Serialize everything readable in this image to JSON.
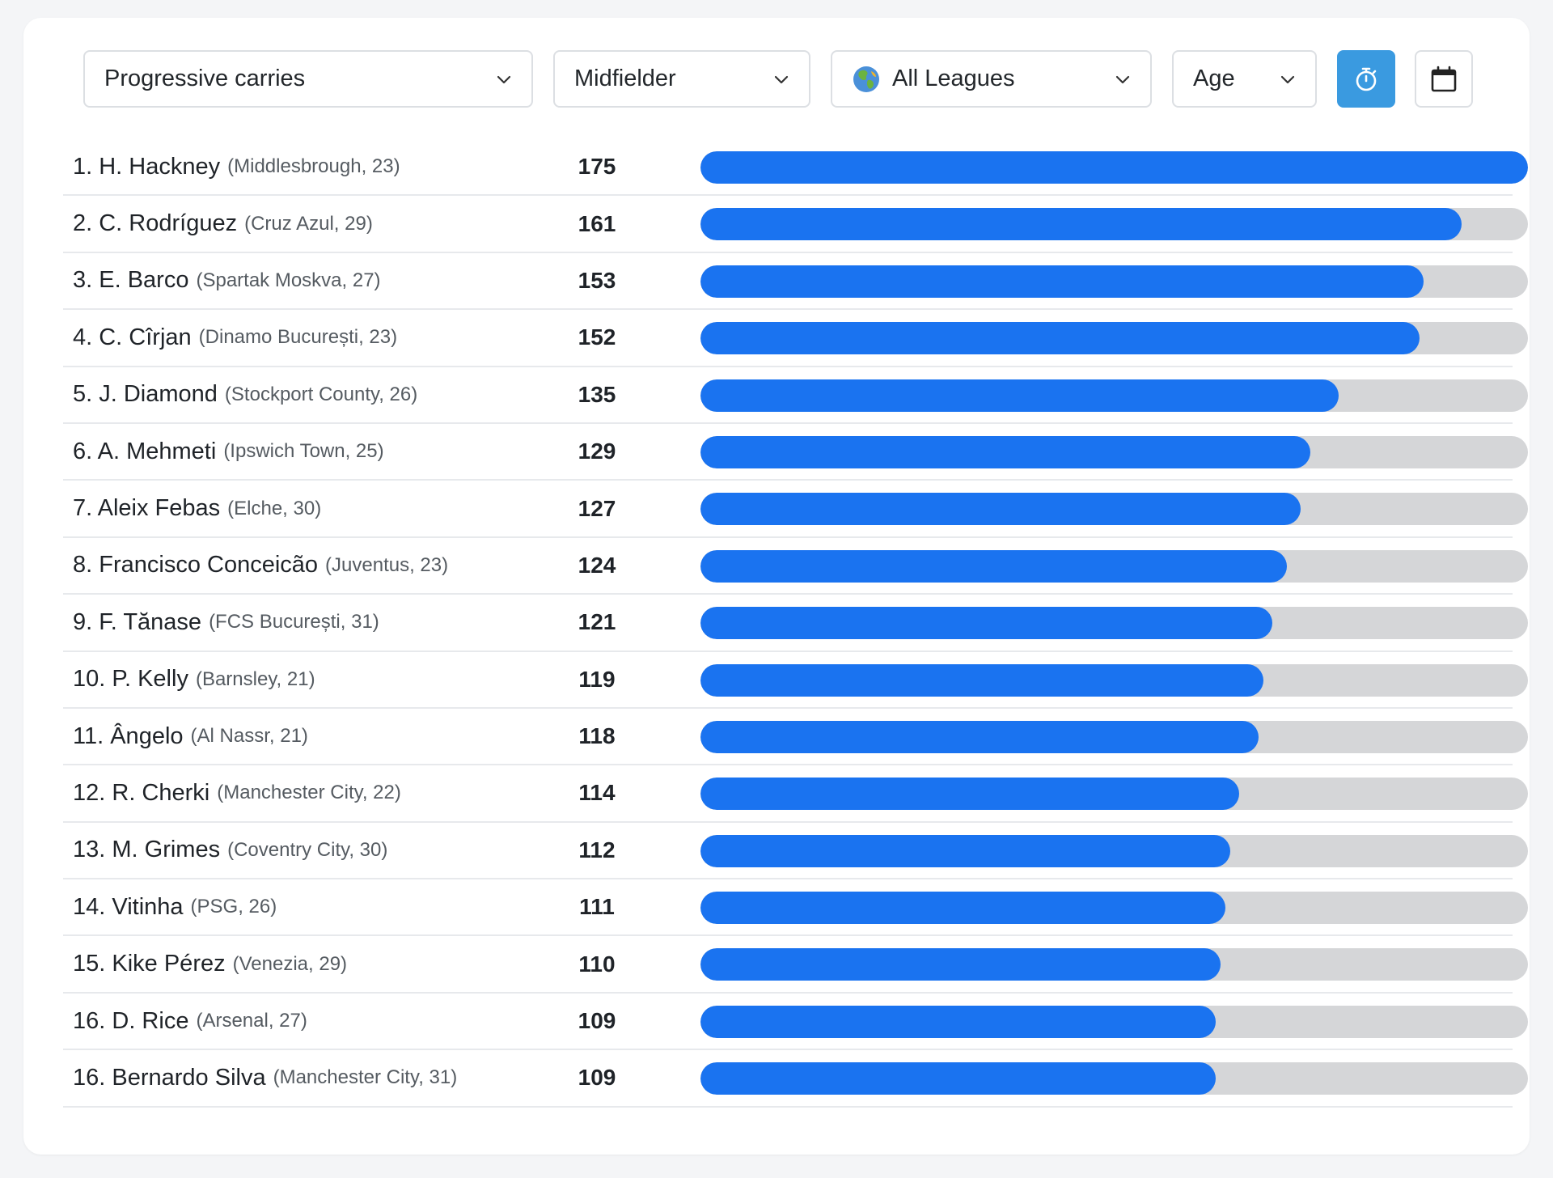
{
  "filters": {
    "metric": "Progressive carries",
    "position": "Midfielder",
    "league": "All Leagues",
    "age": "Age"
  },
  "icons": {
    "chevron": "chevron-down-icon",
    "globe": "globe-icon",
    "timer": "stopwatch-icon",
    "calendar": "calendar-icon"
  },
  "colors": {
    "bar_fill": "#1a73f0",
    "bar_track": "#d5d6d8",
    "timer_button": "#3a9ae0"
  },
  "max_value": 175,
  "chart_data": {
    "type": "bar",
    "orientation": "horizontal",
    "categories": [
      "H. Hackney",
      "C. Rodríguez",
      "E. Barco",
      "C. Cîrjan",
      "J. Diamond",
      "A. Mehmeti",
      "Aleix Febas",
      "Francisco Conceicão",
      "F. Tănase",
      "P. Kelly",
      "Ângelo",
      "R. Cherki",
      "M. Grimes",
      "Vitinha",
      "Kike Pérez",
      "D. Rice",
      "Bernardo Silva"
    ],
    "values": [
      175,
      161,
      153,
      152,
      135,
      129,
      127,
      124,
      121,
      119,
      118,
      114,
      112,
      111,
      110,
      109,
      109
    ],
    "xlim": [
      0,
      175
    ]
  },
  "rows": [
    {
      "name": "1. H. Hackney",
      "team": "(Middlesbrough, 23)",
      "value": "175"
    },
    {
      "name": "2. C. Rodríguez",
      "team": "(Cruz Azul, 29)",
      "value": "161"
    },
    {
      "name": "3. E. Barco",
      "team": "(Spartak Moskva, 27)",
      "value": "153"
    },
    {
      "name": "4. C. Cîrjan",
      "team": "(Dinamo București, 23)",
      "value": "152"
    },
    {
      "name": "5. J. Diamond",
      "team": "(Stockport County, 26)",
      "value": "135"
    },
    {
      "name": "6. A. Mehmeti",
      "team": "(Ipswich Town, 25)",
      "value": "129"
    },
    {
      "name": "7. Aleix Febas",
      "team": "(Elche, 30)",
      "value": "127"
    },
    {
      "name": "8. Francisco Conceicão",
      "team": "(Juventus, 23)",
      "value": "124"
    },
    {
      "name": "9. F. Tănase",
      "team": "(FCS București, 31)",
      "value": "121"
    },
    {
      "name": "10. P. Kelly",
      "team": "(Barnsley, 21)",
      "value": "119"
    },
    {
      "name": "11. Ângelo",
      "team": "(Al Nassr, 21)",
      "value": "118"
    },
    {
      "name": "12. R. Cherki",
      "team": "(Manchester City, 22)",
      "value": "114"
    },
    {
      "name": "13. M. Grimes",
      "team": "(Coventry City, 30)",
      "value": "112"
    },
    {
      "name": "14. Vitinha",
      "team": "(PSG, 26)",
      "value": "111"
    },
    {
      "name": "15. Kike Pérez",
      "team": "(Venezia, 29)",
      "value": "110"
    },
    {
      "name": "16. D. Rice",
      "team": "(Arsenal, 27)",
      "value": "109"
    },
    {
      "name": "16. Bernardo Silva",
      "team": "(Manchester City, 31)",
      "value": "109"
    }
  ]
}
